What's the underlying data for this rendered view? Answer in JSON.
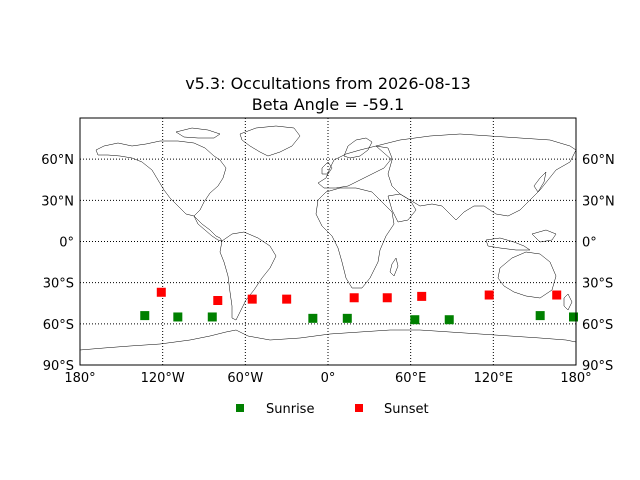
{
  "chart_data": {
    "type": "scatter",
    "title_line1": "v5.3: Occultations from 2026-08-13",
    "title_line2": "Beta Angle = -59.1",
    "projection": "equirectangular",
    "xlim": [
      -180,
      180
    ],
    "ylim": [
      -90,
      90
    ],
    "grid": true,
    "x_tick_values": [
      -180,
      -120,
      -60,
      0,
      60,
      120,
      180
    ],
    "x_tick_labels": [
      "180°",
      "120°W",
      "60°W",
      "0°",
      "60°E",
      "120°E",
      "180°"
    ],
    "y_tick_values": [
      60,
      30,
      0,
      -30,
      -60,
      -90
    ],
    "y_tick_labels": [
      "60°N",
      "30°N",
      "0°",
      "30°S",
      "60°S",
      "90°S"
    ],
    "legend_position": "bottom-center",
    "series": [
      {
        "name": "Sunrise",
        "color": "#008000",
        "marker": "square",
        "points": [
          {
            "lon": -133,
            "lat": -54
          },
          {
            "lon": -109,
            "lat": -55
          },
          {
            "lon": -84,
            "lat": -55
          },
          {
            "lon": -11,
            "lat": -56
          },
          {
            "lon": 14,
            "lat": -56
          },
          {
            "lon": 63,
            "lat": -57
          },
          {
            "lon": 88,
            "lat": -57
          },
          {
            "lon": 154,
            "lat": -54
          },
          {
            "lon": 179,
            "lat": -55
          }
        ]
      },
      {
        "name": "Sunset",
        "color": "#ff0000",
        "marker": "square",
        "points": [
          {
            "lon": -121,
            "lat": -37
          },
          {
            "lon": -80,
            "lat": -43
          },
          {
            "lon": -55,
            "lat": -42
          },
          {
            "lon": -30,
            "lat": -42
          },
          {
            "lon": 19,
            "lat": -41
          },
          {
            "lon": 43,
            "lat": -41
          },
          {
            "lon": 68,
            "lat": -40
          },
          {
            "lon": 117,
            "lat": -39
          },
          {
            "lon": 166,
            "lat": -39
          }
        ]
      }
    ]
  }
}
